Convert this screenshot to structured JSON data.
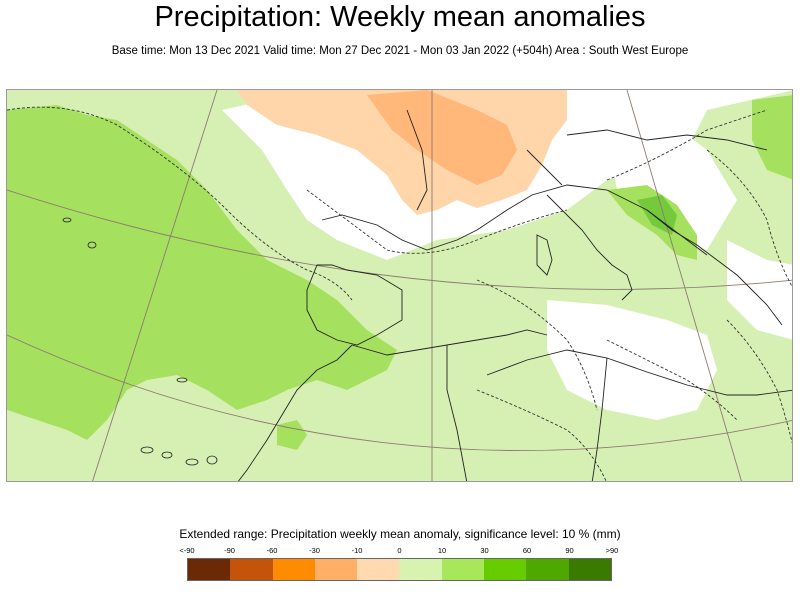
{
  "header": {
    "title": "Precipitation: Weekly mean anomalies",
    "subtitle": "Base time: Mon 13 Dec 2021 Valid time: Mon 27 Dec 2021 - Mon 03 Jan 2022 (+504h) Area : South West Europe"
  },
  "map": {
    "region": "South West Europe",
    "icon": "map-icon"
  },
  "legend": {
    "title": "Extended range: Precipitation weekly mean anomaly, significance level: 10 % (mm)",
    "labels": [
      "<-90",
      "-90",
      "-60",
      "-30",
      "-10",
      "0",
      "10",
      "30",
      "60",
      "90",
      ">90"
    ],
    "colors": [
      "#6b2a05",
      "#c4540a",
      "#ff8c00",
      "#ffb066",
      "#ffd9b0",
      "#d8f2b0",
      "#a8e65a",
      "#66cc00",
      "#4ea800",
      "#3a7a00"
    ],
    "palette": {
      "wet_light": "#d6f0b3",
      "wet_medium": "#a6e05f",
      "wet_strong": "#6cc636",
      "dry_light": "#ffd5aa",
      "dry_medium": "#ffb77a"
    }
  }
}
